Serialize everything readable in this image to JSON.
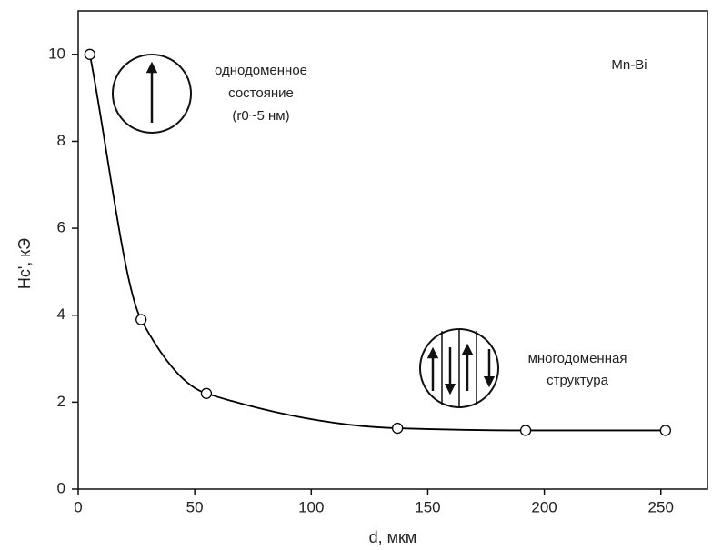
{
  "chart_data": {
    "type": "line",
    "x_label": "d, мкм",
    "y_label": "Hc', кЭ",
    "x": [
      5,
      27,
      55,
      137,
      192,
      252
    ],
    "values": [
      10.0,
      3.9,
      2.2,
      1.4,
      1.35,
      1.35
    ],
    "color": "#000000",
    "xlim": [
      0,
      270
    ],
    "xticks": [
      0,
      50,
      100,
      150,
      200,
      250
    ],
    "ylim": [
      0,
      11
    ],
    "yticks": [
      0,
      2,
      4,
      6,
      8,
      10
    ],
    "annotations": {
      "material": "Mn-Bi",
      "single_domain": [
        "однодоменное",
        "состояние",
        "(r0~5 нм)"
      ],
      "multi_domain": [
        "многодоменная",
        "структура"
      ]
    }
  }
}
